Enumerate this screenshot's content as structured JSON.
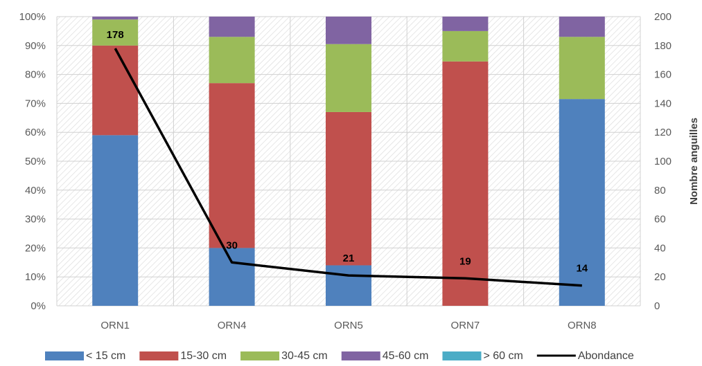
{
  "chart_data": {
    "type": "bar",
    "stacked": true,
    "percent_stacked": true,
    "categories": [
      "ORN1",
      "ORN4",
      "ORN5",
      "ORN7",
      "ORN8"
    ],
    "series": [
      {
        "name": "< 15 cm",
        "color": "#4f81bd",
        "values": [
          59,
          20,
          14,
          0,
          71.5
        ]
      },
      {
        "name": "15-30 cm",
        "color": "#c0504d",
        "values": [
          31,
          57,
          53,
          84.5,
          0
        ]
      },
      {
        "name": "30-45 cm",
        "color": "#9bbb59",
        "values": [
          9,
          16,
          23.5,
          10.5,
          21.5
        ]
      },
      {
        "name": "45-60 cm",
        "color": "#8064a2",
        "values": [
          1,
          7,
          9.5,
          5,
          7
        ]
      },
      {
        "name": "> 60 cm",
        "color": "#4bacc6",
        "values": [
          0,
          0,
          0,
          0,
          0
        ]
      }
    ],
    "line_series": {
      "name": "Abondance",
      "color": "#000000",
      "axis": "secondary",
      "values": [
        178,
        30,
        21,
        19,
        14
      ],
      "labels": [
        "178",
        "30",
        "21",
        "19",
        "14"
      ]
    },
    "y_axis": {
      "ylim": [
        0,
        100
      ],
      "ticks": [
        "0%",
        "10%",
        "20%",
        "30%",
        "40%",
        "50%",
        "60%",
        "70%",
        "80%",
        "90%",
        "100%"
      ]
    },
    "y2_axis": {
      "label": "Nombre anguilles",
      "ylim": [
        0,
        200
      ],
      "ticks": [
        "0",
        "20",
        "40",
        "60",
        "80",
        "100",
        "120",
        "140",
        "160",
        "180",
        "200"
      ]
    },
    "grid": true,
    "legend": "bottom"
  }
}
